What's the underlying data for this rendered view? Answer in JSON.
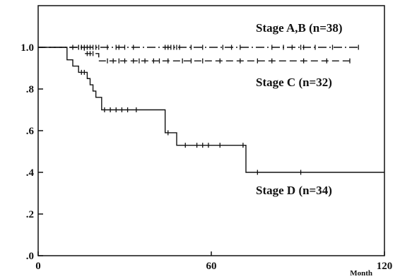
{
  "chart_data": {
    "type": "line",
    "title": "",
    "xlabel": "",
    "ylabel": "",
    "x_unit": "Month",
    "xlim": [
      0,
      120
    ],
    "ylim": [
      0,
      1.2
    ],
    "x_ticks": [
      0,
      60,
      120
    ],
    "x_tick_labels": [
      "0",
      "60",
      "120"
    ],
    "y_ticks": [
      0,
      0.2,
      0.4,
      0.6,
      0.8,
      1.0
    ],
    "y_tick_labels": [
      ".0",
      ".2",
      ".4",
      ".6",
      ".8",
      "1.0"
    ],
    "grid": false,
    "legend": "inline labels",
    "series": [
      {
        "name": "Stage A,B (n=38)",
        "style": "dash-dot",
        "steps": [
          [
            0,
            1.0
          ],
          [
            111,
            1.0
          ]
        ],
        "censored_x": [
          12,
          14,
          15,
          16,
          17,
          18,
          19,
          20,
          21,
          24,
          27,
          28,
          30,
          33,
          44,
          45,
          46,
          47,
          48,
          49,
          53,
          57,
          64,
          67,
          70,
          81,
          85,
          88,
          91,
          92,
          96,
          102,
          111
        ]
      },
      {
        "name": "Stage C (n=32)",
        "style": "dashed",
        "steps": [
          [
            0,
            1.0
          ],
          [
            16,
            1.0
          ],
          [
            16,
            0.97
          ],
          [
            21,
            0.97
          ],
          [
            21,
            0.935
          ],
          [
            108,
            0.935
          ]
        ],
        "censored_x": [
          14,
          15,
          17,
          18,
          19,
          24,
          26,
          28,
          30,
          33,
          35,
          37,
          40,
          42,
          45,
          50,
          53,
          57,
          63,
          70,
          76,
          81,
          92,
          100,
          108
        ]
      },
      {
        "name": "Stage D (n=34)",
        "style": "solid",
        "steps": [
          [
            0,
            1.0
          ],
          [
            10,
            1.0
          ],
          [
            10,
            0.94
          ],
          [
            12,
            0.94
          ],
          [
            12,
            0.91
          ],
          [
            14,
            0.91
          ],
          [
            14,
            0.88
          ],
          [
            17,
            0.88
          ],
          [
            17,
            0.85
          ],
          [
            18,
            0.85
          ],
          [
            18,
            0.82
          ],
          [
            19,
            0.82
          ],
          [
            19,
            0.79
          ],
          [
            20,
            0.79
          ],
          [
            20,
            0.76
          ],
          [
            22,
            0.76
          ],
          [
            22,
            0.7
          ],
          [
            44,
            0.7
          ],
          [
            44,
            0.59
          ],
          [
            48,
            0.59
          ],
          [
            48,
            0.53
          ],
          [
            72,
            0.53
          ],
          [
            72,
            0.4
          ],
          [
            120,
            0.4
          ]
        ],
        "censored_x": [
          15,
          16,
          23,
          25,
          27,
          29,
          31,
          34,
          45,
          51,
          55,
          57,
          59,
          63,
          71,
          76,
          91
        ]
      }
    ]
  }
}
